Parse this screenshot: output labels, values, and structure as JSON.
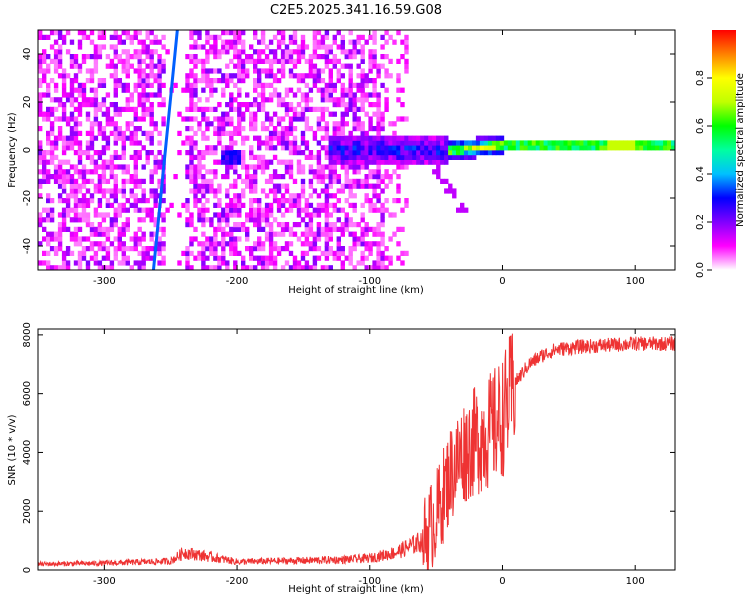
{
  "title": "C2E5.2025.341.16.59.G08",
  "chart_data": [
    {
      "type": "heatmap",
      "title": "C2E5.2025.341.16.59.G08",
      "xlabel": "Height of straight line (km)",
      "ylabel": "Frequency (Hz)",
      "xlim": [
        -350,
        130
      ],
      "ylim": [
        -50,
        50
      ],
      "xticks": [
        -300,
        -200,
        -100,
        0,
        100
      ],
      "yticks": [
        -40,
        -20,
        0,
        20,
        40
      ],
      "colorbar": {
        "label": "Normalized spectral amplitude",
        "range": [
          0,
          1
        ],
        "ticks": [
          0.0,
          0.2,
          0.4,
          0.6,
          0.8
        ],
        "colors": [
          "#ffffff",
          "#ff00ff",
          "#8000ff",
          "#0000ff",
          "#00c0ff",
          "#00ffa0",
          "#00ff00",
          "#c0ff00",
          "#ffff00",
          "#ff8000",
          "#ff0000"
        ]
      },
      "features": {
        "noise_region_x": [
          -350,
          -70
        ],
        "gap_x": [
          -90,
          -60
        ],
        "signal_line": [
          [
            -130,
            0
          ],
          [
            -40,
            0
          ],
          [
            0,
            2
          ],
          [
            130,
            2
          ]
        ],
        "signal_start_x": -130,
        "diagonal_streak": [
          [
            -263,
            -50
          ],
          [
            -245,
            50
          ]
        ],
        "clean_band_x": [
          -255,
          -240
        ],
        "blob_center": [
          -205,
          -3
        ]
      }
    },
    {
      "type": "line",
      "xlabel": "Height of straight line (km)",
      "ylabel": "SNR (10 * v/v)",
      "xlim": [
        -350,
        130
      ],
      "ylim": [
        0,
        8200
      ],
      "xticks": [
        -300,
        -200,
        -100,
        0,
        100
      ],
      "yticks": [
        0,
        2000,
        4000,
        6000,
        8000
      ],
      "color": "#ee3333",
      "series": [
        {
          "name": "SNR",
          "x": [
            -350,
            -300,
            -250,
            -240,
            -200,
            -150,
            -120,
            -100,
            -80,
            -60,
            -50,
            -40,
            -30,
            -20,
            -10,
            0,
            10,
            20,
            30,
            40,
            60,
            80,
            100,
            130
          ],
          "y": [
            200,
            230,
            300,
            600,
            280,
            320,
            350,
            400,
            600,
            1000,
            1800,
            3200,
            4000,
            4400,
            4700,
            5200,
            6400,
            7000,
            7300,
            7500,
            7600,
            7650,
            7700,
            7700
          ]
        }
      ]
    }
  ]
}
